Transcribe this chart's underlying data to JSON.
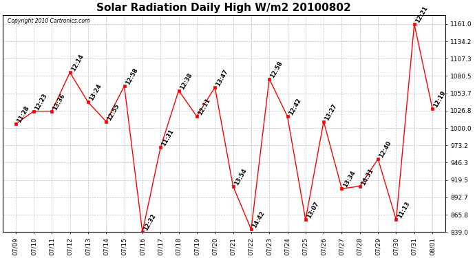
{
  "title": "Solar Radiation Daily High W/m2 20100802",
  "copyright": "Copyright 2010 Cartronics.com",
  "dates": [
    "07/09",
    "07/10",
    "07/11",
    "07/12",
    "07/13",
    "07/14",
    "07/15",
    "07/16",
    "07/17",
    "07/18",
    "07/19",
    "07/20",
    "07/21",
    "07/22",
    "07/23",
    "07/24",
    "07/25",
    "07/26",
    "07/27",
    "07/28",
    "07/29",
    "07/30",
    "07/31",
    "08/01"
  ],
  "values": [
    1006,
    1026,
    1026,
    1086,
    1040,
    1010,
    1065,
    839,
    970,
    1058,
    1018,
    1063,
    910,
    843,
    1076,
    1018,
    858,
    1010,
    906,
    910,
    952,
    858,
    1161,
    1030
  ],
  "times": [
    "11:28",
    "12:23",
    "13:36",
    "12:14",
    "13:24",
    "12:55",
    "12:58",
    "12:32",
    "11:31",
    "12:38",
    "12:11",
    "13:47",
    "13:54",
    "14:42",
    "12:58",
    "12:42",
    "13:07",
    "13:27",
    "13:34",
    "14:31",
    "12:40",
    "11:13",
    "12:21",
    "12:19"
  ],
  "ylim": [
    839.0,
    1175.0
  ],
  "yticks": [
    839.0,
    865.8,
    892.7,
    919.5,
    946.3,
    973.2,
    1000.0,
    1026.8,
    1053.7,
    1080.5,
    1107.3,
    1134.2,
    1161.0
  ],
  "line_color": "red",
  "marker_color": "red",
  "bg_color": "white",
  "grid_color": "#bbbbbb",
  "title_fontsize": 11,
  "tick_fontsize": 6.5,
  "time_fontsize": 6,
  "fig_width": 6.9,
  "fig_height": 3.75,
  "dpi": 100
}
